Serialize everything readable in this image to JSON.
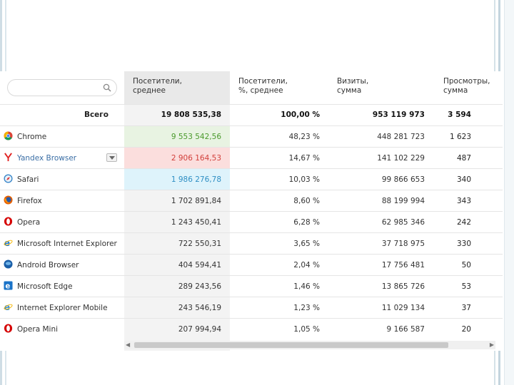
{
  "search": {
    "placeholder": ""
  },
  "columns": [
    {
      "label": "Посетители,\nсреднее"
    },
    {
      "label": "Посетители,\n%, среднее"
    },
    {
      "label": "Визиты,\nсумма"
    },
    {
      "label": "Просмотры,\nсумма"
    }
  ],
  "total": {
    "label": "Всего",
    "visitors": "19 808 535,38",
    "percent": "100,00 %",
    "visits": "953 119 973",
    "views": "3 594"
  },
  "rows": [
    {
      "name": "Chrome",
      "icon": "chrome-icon",
      "visitors": "9 553 542,56",
      "percent": "48,23 %",
      "visits": "448 281 723",
      "views": "1 623"
    },
    {
      "name": "Yandex Browser",
      "icon": "yandex-browser-icon",
      "visitors": "2 906 164,53",
      "percent": "14,67 %",
      "visits": "141 102 229",
      "views": "487"
    },
    {
      "name": "Safari",
      "icon": "safari-icon",
      "visitors": "1 986 276,78",
      "percent": "10,03 %",
      "visits": "99 866 653",
      "views": "340"
    },
    {
      "name": "Firefox",
      "icon": "firefox-icon",
      "visitors": "1 702 891,84",
      "percent": "8,60 %",
      "visits": "88 199 994",
      "views": "343"
    },
    {
      "name": "Opera",
      "icon": "opera-icon",
      "visitors": "1 243 450,41",
      "percent": "6,28 %",
      "visits": "62 985 346",
      "views": "242"
    },
    {
      "name": "Microsoft Internet Explorer",
      "icon": "internet-explorer-icon",
      "visitors": "722 550,31",
      "percent": "3,65 %",
      "visits": "37 718 975",
      "views": "330"
    },
    {
      "name": "Android Browser",
      "icon": "android-browser-icon",
      "visitors": "404 594,41",
      "percent": "2,04 %",
      "visits": "17 756 481",
      "views": "50"
    },
    {
      "name": "Microsoft Edge",
      "icon": "edge-icon",
      "visitors": "289 243,56",
      "percent": "1,46 %",
      "visits": "13 865 726",
      "views": "53"
    },
    {
      "name": "Internet Explorer Mobile",
      "icon": "ie-mobile-icon",
      "visitors": "243 546,19",
      "percent": "1,23 %",
      "visits": "11 029 134",
      "views": "37"
    },
    {
      "name": "Opera Mini",
      "icon": "opera-mini-icon",
      "visitors": "207 994,94",
      "percent": "1,05 %",
      "visits": "9 166 587",
      "views": "20"
    }
  ],
  "colors": {
    "green": "#4a9a2c",
    "red": "#d23f3a",
    "blue": "#2f8fc4"
  }
}
